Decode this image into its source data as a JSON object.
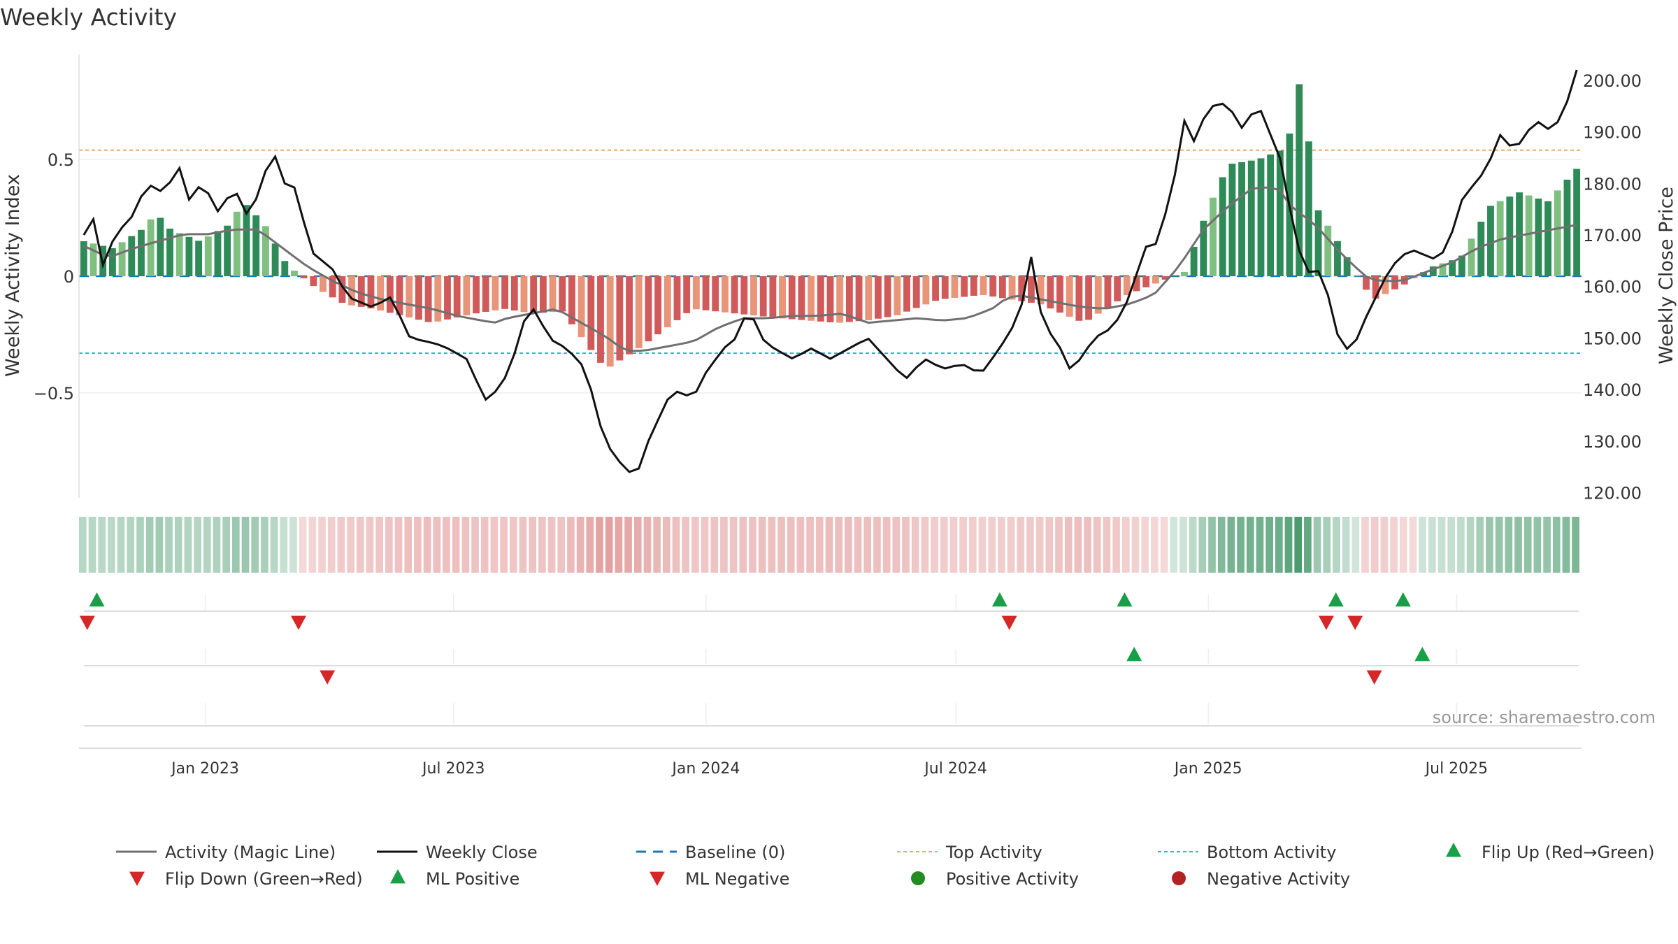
{
  "chart_data": {
    "type": "bar",
    "title": "Weekly Activity",
    "x_axis": {
      "start": "2022-10-01",
      "end": "2025-09-30",
      "ticks": [
        {
          "date": "2023-01-01",
          "label": "Jan 2023"
        },
        {
          "date": "2023-07-01",
          "label": "Jul 2023"
        },
        {
          "date": "2024-01-01",
          "label": "Jan 2024"
        },
        {
          "date": "2024-07-01",
          "label": "Jul 2024"
        },
        {
          "date": "2025-01-01",
          "label": "Jan 2025"
        },
        {
          "date": "2025-07-01",
          "label": "Jul 2025"
        }
      ]
    },
    "left_axis": {
      "label": "Weekly Activity Index",
      "ylim": [
        -0.95,
        0.95
      ],
      "ticks": [
        {
          "v": 0.5,
          "label": "0.5"
        },
        {
          "v": 0,
          "label": "0"
        },
        {
          "v": -0.5,
          "label": "−0.5"
        }
      ]
    },
    "right_axis": {
      "label": "Weekly Close Price",
      "ylim": [
        119,
        205
      ],
      "ticks": [
        {
          "v": 200,
          "label": "200.00"
        },
        {
          "v": 190,
          "label": "190.00"
        },
        {
          "v": 180,
          "label": "180.00"
        },
        {
          "v": 170,
          "label": "170.00"
        },
        {
          "v": 160,
          "label": "160.00"
        },
        {
          "v": 150,
          "label": "150.00"
        },
        {
          "v": 140,
          "label": "140.00"
        },
        {
          "v": 130,
          "label": "130.00"
        },
        {
          "v": 120,
          "label": "120.00"
        }
      ]
    },
    "thresholds": {
      "top": 0.54,
      "bottom": -0.33,
      "baseline": 0
    },
    "activity_keypoints": [
      [
        0,
        0.15
      ],
      [
        4,
        0.12
      ],
      [
        8,
        0.2
      ],
      [
        10,
        0.27
      ],
      [
        12,
        0.2
      ],
      [
        16,
        0.15
      ],
      [
        20,
        0.22
      ],
      [
        22,
        0.32
      ],
      [
        25,
        0.22
      ],
      [
        28,
        0.05
      ],
      [
        32,
        -0.05
      ],
      [
        36,
        -0.12
      ],
      [
        40,
        -0.14
      ],
      [
        48,
        -0.2
      ],
      [
        54,
        -0.16
      ],
      [
        58,
        -0.14
      ],
      [
        62,
        -0.16
      ],
      [
        66,
        -0.15
      ],
      [
        72,
        -0.4
      ],
      [
        77,
        -0.3
      ],
      [
        84,
        -0.14
      ],
      [
        90,
        -0.16
      ],
      [
        96,
        -0.18
      ],
      [
        104,
        -0.2
      ],
      [
        108,
        -0.19
      ],
      [
        112,
        -0.17
      ],
      [
        118,
        -0.1
      ],
      [
        124,
        -0.08
      ],
      [
        132,
        -0.12
      ],
      [
        138,
        -0.2
      ],
      [
        144,
        -0.08
      ],
      [
        148,
        -0.03
      ],
      [
        152,
        0.02
      ],
      [
        154,
        0.2
      ],
      [
        156,
        0.35
      ],
      [
        158,
        0.48
      ],
      [
        162,
        0.5
      ],
      [
        166,
        0.55
      ],
      [
        168,
        0.87
      ],
      [
        170,
        0.3
      ],
      [
        174,
        0.1
      ],
      [
        176,
        -0.02
      ],
      [
        178,
        -0.1
      ],
      [
        182,
        -0.04
      ],
      [
        186,
        0.04
      ],
      [
        190,
        0.08
      ],
      [
        194,
        0.3
      ],
      [
        198,
        0.36
      ],
      [
        202,
        0.32
      ],
      [
        206,
        0.46
      ]
    ],
    "close_keypoints": [
      [
        0,
        170
      ],
      [
        2,
        174
      ],
      [
        3,
        164
      ],
      [
        5,
        170
      ],
      [
        8,
        174
      ],
      [
        10,
        180
      ],
      [
        13,
        178
      ],
      [
        15,
        184
      ],
      [
        17,
        176
      ],
      [
        19,
        181
      ],
      [
        21,
        174
      ],
      [
        24,
        179
      ],
      [
        26,
        174
      ],
      [
        28,
        178
      ],
      [
        30,
        187
      ],
      [
        32,
        180
      ],
      [
        34,
        179
      ],
      [
        36,
        167
      ],
      [
        40,
        163
      ],
      [
        42,
        158
      ],
      [
        46,
        156
      ],
      [
        49,
        158
      ],
      [
        52,
        150
      ],
      [
        56,
        149
      ],
      [
        58,
        148
      ],
      [
        61,
        146
      ],
      [
        64,
        138
      ],
      [
        66,
        140
      ],
      [
        68,
        144
      ],
      [
        70,
        153
      ],
      [
        72,
        156
      ],
      [
        74,
        150
      ],
      [
        77,
        148
      ],
      [
        80,
        144
      ],
      [
        83,
        130
      ],
      [
        86,
        125
      ],
      [
        88,
        123
      ],
      [
        90,
        130
      ],
      [
        93,
        138
      ],
      [
        95,
        140
      ],
      [
        97,
        138
      ],
      [
        99,
        143
      ],
      [
        102,
        148
      ],
      [
        104,
        150
      ],
      [
        106,
        156
      ],
      [
        108,
        150
      ],
      [
        110,
        148
      ],
      [
        113,
        146
      ],
      [
        116,
        148
      ],
      [
        119,
        146
      ],
      [
        122,
        148
      ],
      [
        125,
        150
      ],
      [
        128,
        146
      ],
      [
        131,
        142
      ],
      [
        134,
        146
      ],
      [
        137,
        144
      ],
      [
        140,
        145
      ],
      [
        143,
        143
      ],
      [
        146,
        148
      ],
      [
        148,
        152
      ],
      [
        150,
        158
      ],
      [
        151,
        166
      ],
      [
        153,
        152
      ],
      [
        155,
        150
      ],
      [
        157,
        144
      ],
      [
        159,
        146
      ],
      [
        161,
        150
      ],
      [
        164,
        152
      ],
      [
        166,
        156
      ],
      [
        168,
        163
      ],
      [
        170,
        170
      ],
      [
        171,
        168
      ],
      [
        172,
        172
      ],
      [
        174,
        182
      ],
      [
        176,
        196
      ],
      [
        177,
        188
      ],
      [
        179,
        194
      ],
      [
        181,
        196
      ],
      [
        183,
        194
      ],
      [
        185,
        190
      ],
      [
        187,
        196
      ],
      [
        189,
        190
      ],
      [
        191,
        184
      ],
      [
        193,
        170
      ],
      [
        195,
        162
      ],
      [
        196,
        165
      ],
      [
        198,
        160
      ],
      [
        200,
        150
      ],
      [
        202,
        147
      ],
      [
        204,
        153
      ],
      [
        206,
        158
      ],
      [
        208,
        163
      ],
      [
        210,
        166
      ],
      [
        212,
        167
      ],
      [
        214,
        166
      ],
      [
        216,
        165
      ],
      [
        218,
        170
      ],
      [
        220,
        178
      ],
      [
        222,
        180
      ],
      [
        224,
        184
      ],
      [
        226,
        190
      ],
      [
        228,
        186
      ],
      [
        230,
        190
      ],
      [
        232,
        192
      ],
      [
        234,
        190
      ],
      [
        236,
        194
      ],
      [
        238,
        202
      ]
    ],
    "magic_line_keypoints": [
      [
        0,
        0.13
      ],
      [
        4,
        0.08
      ],
      [
        8,
        0.12
      ],
      [
        12,
        0.15
      ],
      [
        16,
        0.18
      ],
      [
        20,
        0.18
      ],
      [
        24,
        0.2
      ],
      [
        28,
        0.2
      ],
      [
        32,
        0.12
      ],
      [
        36,
        0.04
      ],
      [
        40,
        -0.02
      ],
      [
        44,
        -0.07
      ],
      [
        48,
        -0.1
      ],
      [
        52,
        -0.12
      ],
      [
        56,
        -0.14
      ],
      [
        60,
        -0.17
      ],
      [
        64,
        -0.19
      ],
      [
        66,
        -0.2
      ],
      [
        68,
        -0.18
      ],
      [
        72,
        -0.16
      ],
      [
        76,
        -0.14
      ],
      [
        80,
        -0.2
      ],
      [
        84,
        -0.26
      ],
      [
        87,
        -0.32
      ],
      [
        90,
        -0.32
      ],
      [
        94,
        -0.3
      ],
      [
        98,
        -0.28
      ],
      [
        102,
        -0.22
      ],
      [
        106,
        -0.18
      ],
      [
        110,
        -0.18
      ],
      [
        114,
        -0.17
      ],
      [
        118,
        -0.17
      ],
      [
        122,
        -0.16
      ],
      [
        126,
        -0.2
      ],
      [
        130,
        -0.19
      ],
      [
        134,
        -0.18
      ],
      [
        138,
        -0.19
      ],
      [
        142,
        -0.18
      ],
      [
        146,
        -0.14
      ],
      [
        148,
        -0.1
      ],
      [
        150,
        -0.08
      ],
      [
        152,
        -0.09
      ],
      [
        156,
        -0.11
      ],
      [
        160,
        -0.13
      ],
      [
        164,
        -0.14
      ],
      [
        168,
        -0.12
      ],
      [
        172,
        -0.08
      ],
      [
        176,
        0.04
      ],
      [
        180,
        0.2
      ],
      [
        184,
        0.3
      ],
      [
        188,
        0.38
      ],
      [
        192,
        0.38
      ],
      [
        194,
        0.3
      ],
      [
        198,
        0.22
      ],
      [
        202,
        0.1
      ],
      [
        206,
        0.0
      ],
      [
        208,
        -0.02
      ],
      [
        212,
        -0.02
      ],
      [
        216,
        0.02
      ],
      [
        220,
        0.06
      ],
      [
        224,
        0.12
      ],
      [
        228,
        0.16
      ],
      [
        232,
        0.18
      ],
      [
        236,
        0.2
      ],
      [
        240,
        0.22
      ]
    ],
    "event_rows": [
      {
        "name": "flip",
        "up": [
          "2022-10-14",
          "2024-08-02",
          "2024-11-01",
          "2025-04-04",
          "2025-05-23"
        ],
        "down": [
          "2022-10-07",
          "2023-03-10",
          "2024-08-09",
          "2025-03-28",
          "2025-04-18"
        ]
      },
      {
        "name": "ml",
        "up": [
          "2024-11-08",
          "2025-06-06"
        ],
        "down": [
          "2023-03-31",
          "2025-05-02"
        ]
      },
      {
        "name": "activity",
        "up": [],
        "down": []
      }
    ],
    "colors": {
      "pos_strong": "#2e8b57",
      "pos_weak": "#7fbf7f",
      "neg_strong": "#d05a5a",
      "neg_weak": "#e8957a",
      "close_line": "#111111",
      "magic_line": "#707070",
      "baseline": "#1f77b4",
      "top_line": "#e8a86a",
      "bottom_line": "#17becf",
      "up_marker": "#1a9e48",
      "down_marker": "#d62728",
      "dot_pos": "#228b22",
      "dot_neg": "#b22222"
    },
    "legend": [
      {
        "key": "magic",
        "label": "Activity (Magic Line)"
      },
      {
        "key": "close",
        "label": "Weekly Close"
      },
      {
        "key": "baseline",
        "label": "Baseline (0)"
      },
      {
        "key": "top",
        "label": "Top Activity"
      },
      {
        "key": "bottom",
        "label": "Bottom Activity"
      },
      {
        "key": "flipup",
        "label": "Flip Up (Red→Green)"
      },
      {
        "key": "flipdown",
        "label": "Flip Down (Green→Red)"
      },
      {
        "key": "mlpos",
        "label": "ML Positive"
      },
      {
        "key": "mlneg",
        "label": "ML Negative"
      },
      {
        "key": "posact",
        "label": "Positive Activity"
      },
      {
        "key": "negact",
        "label": "Negative Activity"
      }
    ],
    "source": "source: sharemaestro.com"
  }
}
